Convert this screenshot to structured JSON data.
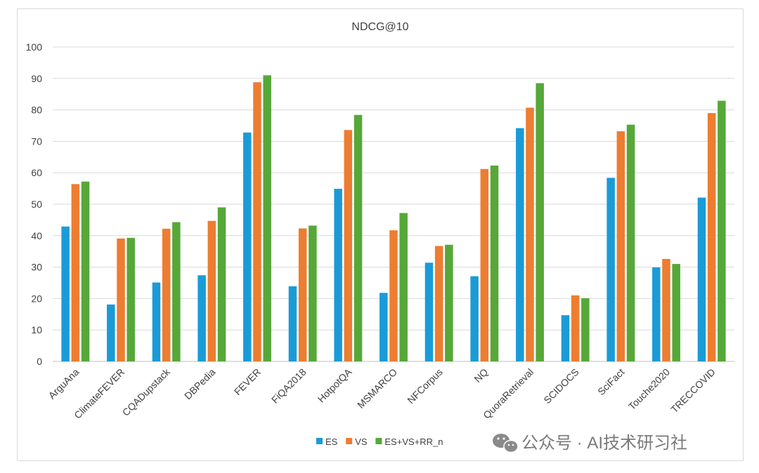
{
  "chart_data": {
    "type": "bar",
    "title": "NDCG@10",
    "xlabel": "",
    "ylabel": "",
    "ylim": [
      0,
      100
    ],
    "yticks": [
      0,
      10,
      20,
      30,
      40,
      50,
      60,
      70,
      80,
      90,
      100
    ],
    "grid": true,
    "legend_position": "bottom",
    "categories": [
      "ArguAna",
      "ClimateFEVER",
      "CQADupstack",
      "DBPedia",
      "FEVER",
      "FiQA2018",
      "HotpotQA",
      "MSMARCO",
      "NFCorpus",
      "NQ",
      "QuoraRetrieval",
      "SCIDOCS",
      "SciFact",
      "Touche2020",
      "TRECCOVID"
    ],
    "series": [
      {
        "name": "ES",
        "color": "#1a9bd7",
        "values": [
          42.9,
          18.1,
          25.1,
          27.4,
          72.8,
          23.9,
          54.9,
          21.8,
          31.4,
          27.1,
          74.2,
          14.7,
          58.4,
          29.9,
          52.1
        ]
      },
      {
        "name": "VS",
        "color": "#ed7d31",
        "values": [
          56.4,
          39.1,
          42.2,
          44.7,
          88.8,
          42.3,
          73.6,
          41.7,
          36.7,
          61.2,
          80.7,
          21.0,
          73.2,
          32.6,
          79.0
        ]
      },
      {
        "name": "ES+VS+RR_n",
        "color": "#56a838",
        "values": [
          57.2,
          39.3,
          44.3,
          49.0,
          91.0,
          43.2,
          78.4,
          47.2,
          37.1,
          62.3,
          88.5,
          20.1,
          75.3,
          31.0,
          82.9
        ]
      }
    ]
  },
  "watermark": {
    "text": "公众号 · AI技术研习社",
    "icon": "wechat-icon"
  }
}
